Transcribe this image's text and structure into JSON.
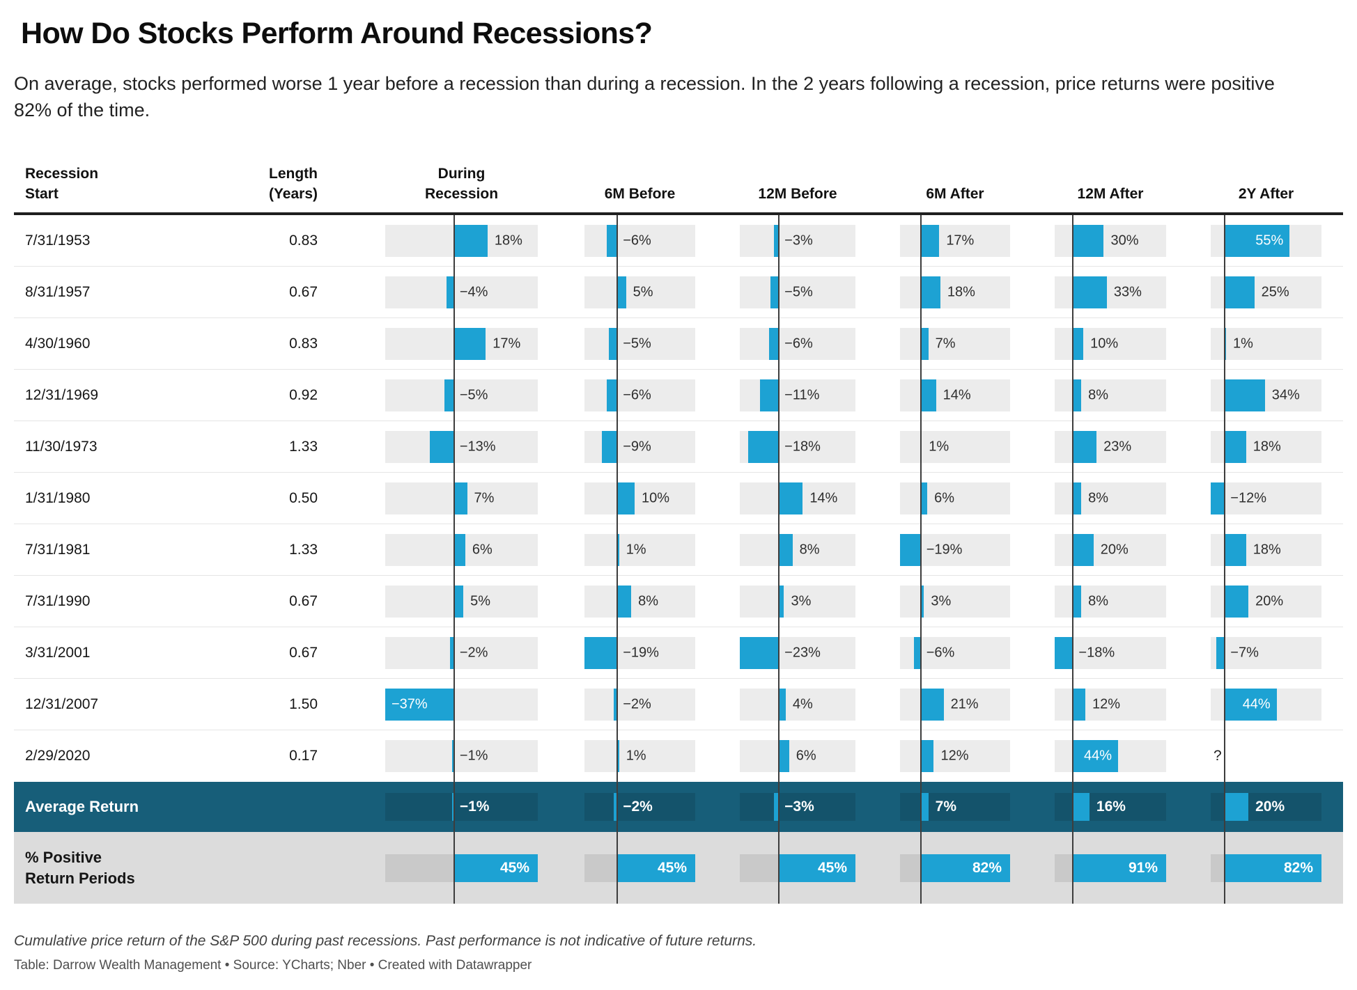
{
  "title": "How Do Stocks Perform Around Recessions?",
  "subtitle": "On average, stocks performed worse 1 year before a recession than during a recession. In the 2 years following a recession, price returns were positive\n82% of the time.",
  "accent_color": "#1da2d3",
  "average_row_bg": "#175e79",
  "positive_row_bg": "#dcdcdc",
  "chart_data": {
    "type": "table",
    "title": "How Do Stocks Perform Around Recessions?",
    "bar_color": "#1da2d3",
    "columns": [
      {
        "key": "recession_start",
        "label": "Recession\nStart",
        "cell": 250
      },
      {
        "key": "length_years",
        "label": "Length\n(Years)",
        "cell": 186
      },
      {
        "key": "during",
        "label": "During\nRecession",
        "cell": 316,
        "track": 219,
        "min": -37,
        "max": 45
      },
      {
        "key": "m6_before",
        "label": "6M Before",
        "cell": 226,
        "track": 159,
        "min": -19,
        "max": 45
      },
      {
        "key": "m12_before",
        "label": "12M Before",
        "cell": 230,
        "track": 166,
        "min": -23,
        "max": 45
      },
      {
        "key": "m6_after",
        "label": "6M After",
        "cell": 222,
        "track": 158,
        "min": -19,
        "max": 82
      },
      {
        "key": "m12_after",
        "label": "12M After",
        "cell": 224,
        "track": 160,
        "min": -18,
        "max": 91
      },
      {
        "key": "y2_after",
        "label": "2Y After",
        "cell": 223,
        "track": 159,
        "min": -12,
        "max": 82
      }
    ],
    "rows": [
      {
        "date": "7/31/1953",
        "length": "0.83",
        "values": [
          18,
          -6,
          -3,
          17,
          30,
          55
        ],
        "inside": [
          5
        ]
      },
      {
        "date": "8/31/1957",
        "length": "0.67",
        "values": [
          -4,
          5,
          -5,
          18,
          33,
          25
        ],
        "inside": []
      },
      {
        "date": "4/30/1960",
        "length": "0.83",
        "values": [
          17,
          -5,
          -6,
          7,
          10,
          1
        ],
        "inside": []
      },
      {
        "date": "12/31/1969",
        "length": "0.92",
        "values": [
          -5,
          -6,
          -11,
          14,
          8,
          34
        ],
        "inside": []
      },
      {
        "date": "11/30/1973",
        "length": "1.33",
        "values": [
          -13,
          -9,
          -18,
          1,
          23,
          18
        ],
        "inside": []
      },
      {
        "date": "1/31/1980",
        "length": "0.50",
        "values": [
          7,
          10,
          14,
          6,
          8,
          -12
        ],
        "inside": []
      },
      {
        "date": "7/31/1981",
        "length": "1.33",
        "values": [
          6,
          1,
          8,
          -19,
          20,
          18
        ],
        "inside": []
      },
      {
        "date": "7/31/1990",
        "length": "0.67",
        "values": [
          5,
          8,
          3,
          3,
          8,
          20
        ],
        "inside": []
      },
      {
        "date": "3/31/2001",
        "length": "0.67",
        "values": [
          -2,
          -19,
          -23,
          -6,
          -18,
          -7
        ],
        "inside": []
      },
      {
        "date": "12/31/2007",
        "length": "1.50",
        "values": [
          -37,
          -2,
          4,
          21,
          12,
          44
        ],
        "inside": [
          0,
          5
        ]
      },
      {
        "date": "2/29/2020",
        "length": "0.17",
        "values": [
          -1,
          1,
          6,
          12,
          44,
          null
        ],
        "inside": [
          4
        ],
        "placeholder": "?"
      }
    ],
    "average_row": {
      "label": "Average Return",
      "values": [
        -1,
        -2,
        -3,
        7,
        16,
        20
      ]
    },
    "percent_positive_row": {
      "label": "% Positive\nReturn Periods",
      "values": [
        45,
        45,
        45,
        82,
        91,
        82
      ]
    }
  },
  "footer": {
    "footnote": "Cumulative price return of the S&P 500 during past recessions. Past performance is not indicative of future returns.",
    "credit": "Table: Darrow Wealth Management • Source: YCharts; Nber • Created with Datawrapper"
  }
}
